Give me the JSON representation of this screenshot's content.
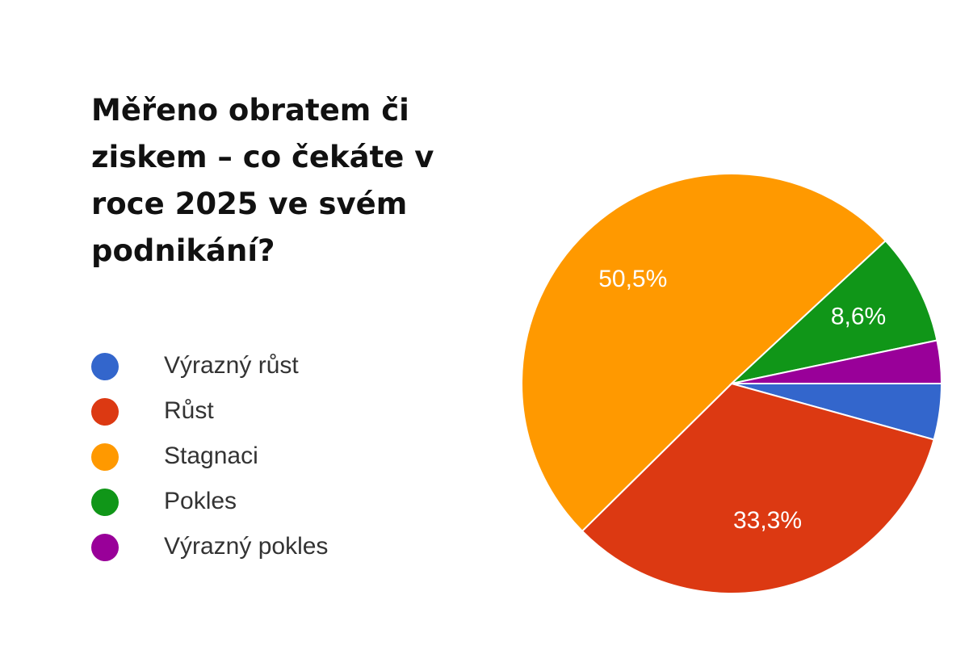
{
  "chart_data": {
    "type": "pie",
    "title": "Měřeno obratem či ziskem – co čekáte v roce 2025 ve svém podnikání?",
    "categories": [
      "Výrazný růst",
      "Růst",
      "Stagnaci",
      "Pokles",
      "Výrazný pokles"
    ],
    "values": [
      4.3,
      33.3,
      50.5,
      8.6,
      3.3
    ],
    "value_labels": [
      null,
      "33,3%",
      "50,5%",
      "8,6%",
      null
    ],
    "colors": [
      "#3366cc",
      "#dc3912",
      "#ff9900",
      "#109618",
      "#990099"
    ],
    "legend": "left"
  }
}
